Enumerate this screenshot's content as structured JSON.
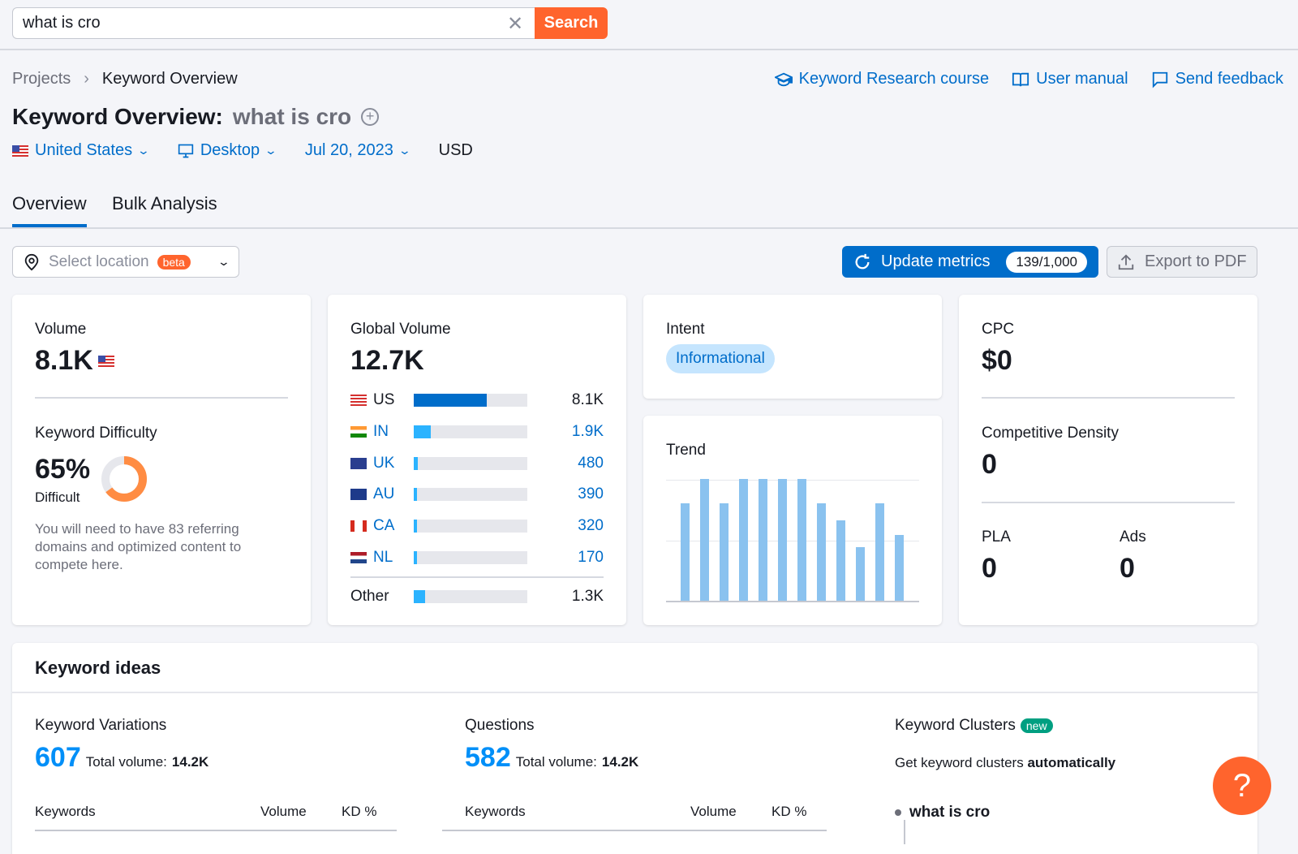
{
  "search": {
    "value": "what is cro",
    "button_label": "Search"
  },
  "breadcrumb": {
    "projects": "Projects",
    "separator": "›",
    "current": "Keyword Overview"
  },
  "help_links": {
    "course": "Keyword Research course",
    "manual": "User manual",
    "feedback": "Send feedback"
  },
  "title": {
    "prefix": "Keyword Overview:",
    "keyword": "what is cro"
  },
  "filters": {
    "country": "United States",
    "device": "Desktop",
    "date": "Jul 20, 2023",
    "currency": "USD"
  },
  "tabs": [
    {
      "label": "Overview"
    },
    {
      "label": "Bulk Analysis"
    }
  ],
  "location": {
    "placeholder": "Select location",
    "badge": "beta"
  },
  "actions": {
    "update_label": "Update metrics",
    "update_count": "139/1,000",
    "export_label": "Export to PDF"
  },
  "volume_card": {
    "volume_label": "Volume",
    "volume_value": "8.1K",
    "kd_label": "Keyword Difficulty",
    "kd_value": "65%",
    "kd_fraction": 0.65,
    "kd_level": "Difficult",
    "kd_note": "You will need to have 83 referring domains and optimized content to compete here.",
    "kd_color": "#ff8c43"
  },
  "global_volume": {
    "label": "Global Volume",
    "value": "12.7K",
    "rows": [
      {
        "code": "US",
        "value": "8.1K",
        "fraction": 0.64,
        "color": "#006dca",
        "link": false
      },
      {
        "code": "IN",
        "value": "1.9K",
        "fraction": 0.15,
        "color": "#2bb3ff",
        "link": true
      },
      {
        "code": "UK",
        "value": "480",
        "fraction": 0.038,
        "color": "#2bb3ff",
        "link": true
      },
      {
        "code": "AU",
        "value": "390",
        "fraction": 0.031,
        "color": "#2bb3ff",
        "link": true
      },
      {
        "code": "CA",
        "value": "320",
        "fraction": 0.025,
        "color": "#2bb3ff",
        "link": true
      },
      {
        "code": "NL",
        "value": "170",
        "fraction": 0.013,
        "color": "#2bb3ff",
        "link": true
      }
    ],
    "other": {
      "code": "Other",
      "value": "1.3K",
      "fraction": 0.1,
      "color": "#2bb3ff"
    }
  },
  "intent": {
    "label": "Intent",
    "value": "Informational"
  },
  "trend": {
    "label": "Trend",
    "values": [
      0.8,
      1.0,
      0.8,
      1.0,
      1.0,
      1.0,
      1.0,
      0.8,
      0.66,
      0.44,
      0.8,
      0.54
    ]
  },
  "cpc_card": {
    "cpc_label": "CPC",
    "cpc_value": "$0",
    "cd_label": "Competitive Density",
    "cd_value": "0",
    "pla_label": "PLA",
    "pla_value": "0",
    "ads_label": "Ads",
    "ads_value": "0"
  },
  "keyword_ideas": {
    "title": "Keyword ideas",
    "variations": {
      "label": "Keyword Variations",
      "count": "607",
      "total_label": "Total volume:",
      "total_value": "14.2K"
    },
    "questions": {
      "label": "Questions",
      "count": "582",
      "total_label": "Total volume:",
      "total_value": "14.2K"
    },
    "clusters": {
      "label": "Keyword Clusters",
      "badge": "new",
      "text": "Get keyword clusters",
      "text_bold": "automatically",
      "item": "what is cro"
    },
    "columns": {
      "keywords": "Keywords",
      "volume": "Volume",
      "kd": "KD %"
    }
  },
  "help_fab": "?"
}
